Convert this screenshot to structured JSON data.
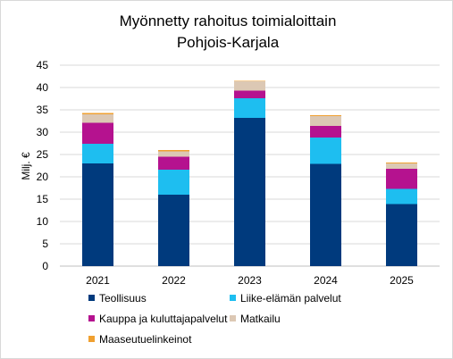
{
  "chart_data": {
    "type": "bar",
    "stacked": true,
    "title_lines": [
      "Myönnetty rahoitus toimialoittain",
      "Pohjois-Karjala"
    ],
    "xlabel": "",
    "ylabel": "Milj. €",
    "ylim": [
      0,
      45
    ],
    "y_ticks": [
      0,
      5,
      10,
      15,
      20,
      25,
      30,
      35,
      40,
      45
    ],
    "grid": true,
    "legend_position": "bottom",
    "categories": [
      "2021",
      "2022",
      "2023",
      "2024",
      "2025"
    ],
    "series": [
      {
        "name": "Teollisuus",
        "color": "#003A7D",
        "values": [
          23.0,
          16.0,
          33.2,
          22.9,
          13.9
        ]
      },
      {
        "name": "Liike-elämän palvelut",
        "color": "#1EBEF0",
        "values": [
          4.4,
          5.6,
          4.4,
          5.9,
          3.4
        ]
      },
      {
        "name": "Kauppa ja kuluttajapalvelut",
        "color": "#B5128F",
        "values": [
          4.7,
          2.9,
          1.7,
          2.6,
          4.5
        ]
      },
      {
        "name": "Matkailu",
        "color": "#DCC8B4",
        "values": [
          1.9,
          1.2,
          2.1,
          2.2,
          1.2
        ]
      },
      {
        "name": "Maaseutuelinkeinot",
        "color": "#F0A030",
        "values": [
          0.3,
          0.3,
          0.1,
          0.2,
          0.2
        ]
      }
    ]
  }
}
